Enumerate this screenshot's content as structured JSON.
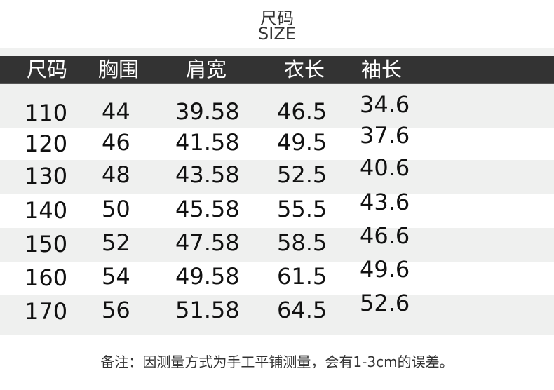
{
  "title_cn": "尺码",
  "title_en": "SIZE",
  "headers": [
    "尺码",
    "胸围",
    "肩宽",
    "衣长",
    "袖长"
  ],
  "rows": [
    [
      "110",
      "44",
      "39.58",
      "46.5",
      "34.6"
    ],
    [
      "120",
      "46",
      "41.58",
      "49.5",
      "37.6"
    ],
    [
      "130",
      "48",
      "43.58",
      "52.5",
      "40.6"
    ],
    [
      "140",
      "50",
      "45.58",
      "55.5",
      "43.6"
    ],
    [
      "150",
      "52",
      "47.58",
      "58.5",
      "46.6"
    ],
    [
      "160",
      "54",
      "49.58",
      "61.5",
      "49.6"
    ],
    [
      "170",
      "56",
      "51.58",
      "64.5",
      "52.6"
    ]
  ],
  "note": "备注：因测量方式为手工平铺测量，会有1-3cm的误差。",
  "colors": {
    "header_bg": "#333333",
    "row_alt": "#eff0ef"
  }
}
